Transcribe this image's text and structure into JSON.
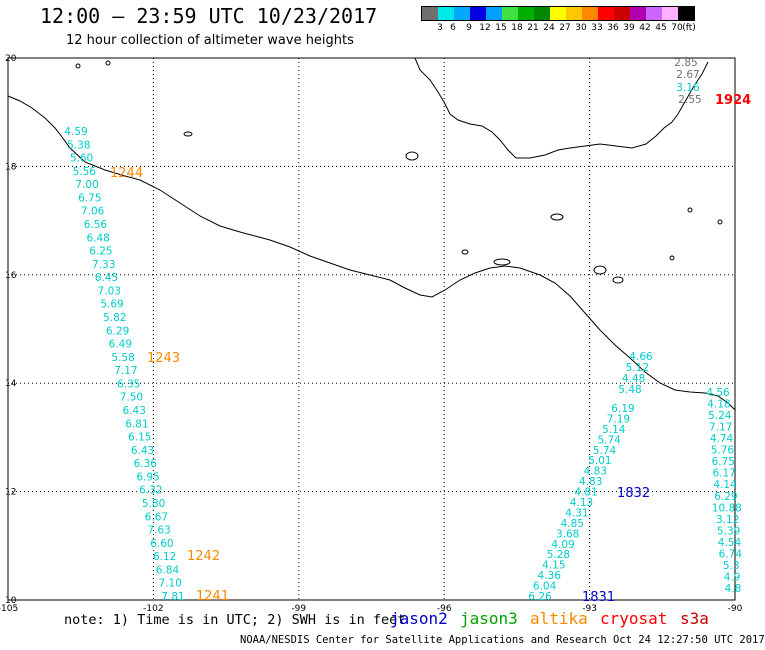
{
  "header": {
    "title": "12:00 – 23:59 UTC 10/23/2017",
    "subtitle": "12 hour collection of altimeter wave heights"
  },
  "legend": {
    "colors": [
      "#707070",
      "#00e8e8",
      "#00aaff",
      "#0000e0",
      "#00a0ff",
      "#40e040",
      "#00b000",
      "#008800",
      "#ffff00",
      "#ffc800",
      "#ff8800",
      "#ff0000",
      "#cc0000",
      "#b000b0",
      "#cc66ff",
      "#ffb0ff",
      "#000000"
    ],
    "ticks": [
      "3",
      "6",
      "9",
      "12",
      "15",
      "18",
      "21",
      "24",
      "27",
      "30",
      "33",
      "36",
      "39",
      "42",
      "45",
      "70",
      "(ft)"
    ]
  },
  "axes": {
    "lon_ticks": [
      "-105",
      "-102",
      "-99",
      "-96",
      "-93",
      "-90"
    ],
    "lat_ticks": [
      "20",
      "18",
      "16",
      "14",
      "12",
      "10"
    ]
  },
  "colors": {
    "jason2": "#0000cc",
    "jason3": "#00a000",
    "altika": "#ff8800",
    "cryosat": "#ff0000",
    "s3a": "#cc0000",
    "cyan": "#00cccc",
    "gray": "#707070"
  },
  "tracks": {
    "west": [
      "4.59",
      "5.38",
      "5.60",
      "5.56",
      "7.00",
      "6.75",
      "7.06",
      "6.56",
      "6.48",
      "6.25",
      "7.33",
      "6.45",
      "7.03",
      "5.69",
      "5.82",
      "6.29",
      "6.49",
      "5.58",
      "7.17",
      "6.35",
      "7.50",
      "6.43",
      "6.81",
      "6.15",
      "6.43",
      "6.36",
      "6.95",
      "6.32",
      "5.80",
      "6.67",
      "7.63",
      "6.60",
      "6.12",
      "6.84",
      "7.10",
      "7.81"
    ],
    "mid_top": [
      "4.66",
      "5.12",
      "4.48",
      "5.48"
    ],
    "mid": [
      "6.19",
      "7.19",
      "5.14",
      "5.74",
      "5.74",
      "5.01",
      "4.83",
      "4.83",
      "4.81",
      "4.13",
      "4.31",
      "4.85",
      "3.68",
      "4.09",
      "5.28",
      "4.15",
      "4.36",
      "6.04",
      "6.26"
    ],
    "east": [
      "4.56",
      "4.18",
      "5.24",
      "7.17",
      "4.74",
      "5.76",
      "6.75",
      "6.17",
      "4.14",
      "6.29",
      "10.88",
      "3.12",
      "5.39",
      "4.54",
      "6.74",
      "5.3",
      "4.9",
      "4.8"
    ],
    "northeast": [
      "2.85",
      "2.67",
      "3.16",
      "2.55"
    ]
  },
  "times": {
    "t1244": "1244",
    "t1243": "1243",
    "t1242": "1242",
    "t1241": "1241",
    "t1832": "1832",
    "t1831": "1831",
    "t1924": "1924"
  },
  "note": "note: 1) Time is in UTC; 2) SWH is in feet",
  "satellites": {
    "jason2": "jason2",
    "jason3": "jason3",
    "altika": "altika",
    "cryosat": "cryosat",
    "s3a": "s3a"
  },
  "footer": "NOAA/NESDIS Center for Satellite Applications and Research   Oct 24 12:27:50 UTC 2017"
}
